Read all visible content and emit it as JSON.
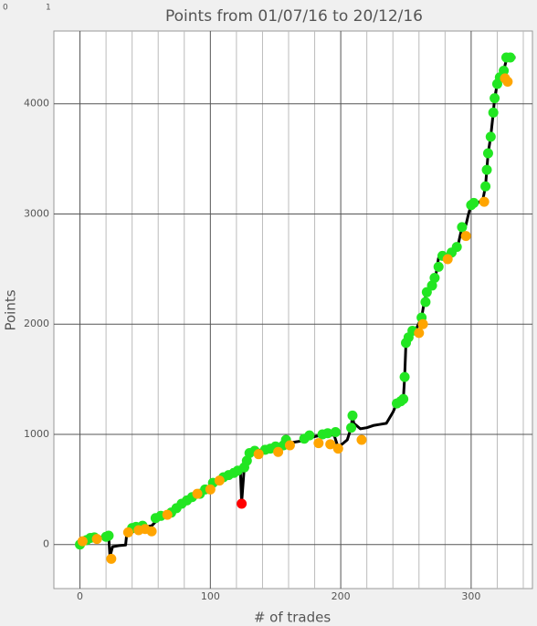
{
  "chart_data": {
    "type": "line",
    "title": "Points from 01/07/16 to 20/12/16",
    "corner_labels": [
      "0",
      "1"
    ],
    "x_label": "# of trades",
    "y_label": "Points",
    "xlim": [
      -20,
      347
    ],
    "ylim": [
      -400,
      4660
    ],
    "xticks": [
      0,
      100,
      200,
      300
    ],
    "xminorticks": [
      20,
      40,
      60,
      80,
      120,
      140,
      160,
      180,
      220,
      240,
      260,
      280,
      320,
      340
    ],
    "yticks": [
      0,
      1000,
      2000,
      3000,
      4000
    ],
    "grid": true,
    "series": [
      {
        "kind": "line",
        "color": "#000000",
        "x": [
          0,
          5,
          10,
          15,
          20,
          22,
          23,
          25,
          30,
          35,
          36,
          40,
          45,
          50,
          55,
          60,
          65,
          70,
          75,
          80,
          85,
          90,
          95,
          100,
          105,
          110,
          115,
          120,
          123,
          124,
          126,
          128,
          130,
          135,
          140,
          145,
          150,
          155,
          160,
          165,
          170,
          175,
          180,
          185,
          190,
          195,
          198,
          200,
          205,
          208,
          209,
          210,
          212,
          215,
          220,
          225,
          230,
          235,
          240,
          243,
          246,
          248,
          249,
          250,
          252,
          255,
          258,
          262,
          264,
          266,
          270,
          273,
          275,
          280,
          285,
          290,
          293,
          296,
          298,
          300,
          305,
          309,
          311,
          312,
          313,
          315,
          317,
          318,
          320,
          322,
          325,
          327,
          330,
          334
        ],
        "values": [
          0,
          40,
          60,
          65,
          70,
          80,
          -110,
          -20,
          -10,
          -5,
          110,
          110,
          150,
          160,
          170,
          230,
          260,
          290,
          330,
          380,
          420,
          460,
          500,
          540,
          580,
          620,
          640,
          660,
          680,
          380,
          700,
          760,
          830,
          850,
          860,
          870,
          890,
          900,
          920,
          930,
          940,
          960,
          980,
          990,
          1000,
          990,
          880,
          900,
          950,
          1060,
          1170,
          1100,
          1080,
          1050,
          1060,
          1080,
          1090,
          1100,
          1200,
          1280,
          1300,
          1320,
          1520,
          1830,
          1880,
          1930,
          1960,
          2060,
          2200,
          2290,
          2350,
          2450,
          2600,
          2620,
          2660,
          2720,
          2880,
          2900,
          3000,
          3080,
          3100,
          3130,
          3250,
          3400,
          3550,
          3700,
          3920,
          4050,
          4180,
          4240,
          4300,
          4400,
          4420,
          4420
        ]
      },
      {
        "kind": "markers",
        "color": "#22e622",
        "x": [
          0,
          5,
          8,
          11,
          20,
          22,
          40,
          43,
          48,
          58,
          62,
          70,
          74,
          78,
          82,
          86,
          92,
          96,
          102,
          110,
          114,
          118,
          121,
          126,
          128,
          130,
          134,
          142,
          146,
          150,
          156,
          158,
          172,
          176,
          186,
          190,
          196,
          208,
          209,
          243,
          246,
          248,
          249,
          250,
          252,
          255,
          262,
          265,
          266,
          270,
          272,
          275,
          278,
          285,
          289,
          293,
          300,
          302,
          311,
          312,
          313,
          315,
          317,
          318,
          320,
          322,
          325,
          327,
          330
        ],
        "values": [
          0,
          40,
          60,
          65,
          70,
          80,
          150,
          160,
          170,
          240,
          260,
          290,
          330,
          370,
          400,
          430,
          460,
          500,
          560,
          610,
          630,
          650,
          670,
          700,
          760,
          830,
          850,
          860,
          870,
          890,
          900,
          950,
          960,
          990,
          1000,
          1010,
          1020,
          1060,
          1170,
          1280,
          1300,
          1320,
          1520,
          1830,
          1880,
          1940,
          2060,
          2200,
          2290,
          2350,
          2420,
          2520,
          2620,
          2650,
          2700,
          2880,
          3080,
          3100,
          3250,
          3400,
          3550,
          3700,
          3920,
          4050,
          4180,
          4240,
          4300,
          4420,
          4420
        ]
      },
      {
        "kind": "markers",
        "color": "#ffa500",
        "x": [
          2,
          13,
          24,
          37,
          45,
          50,
          55,
          67,
          90,
          100,
          107,
          137,
          152,
          161,
          183,
          192,
          198,
          216,
          260,
          263,
          282,
          296,
          310,
          326,
          328
        ],
        "values": [
          30,
          50,
          -130,
          110,
          130,
          140,
          120,
          270,
          460,
          500,
          580,
          820,
          840,
          900,
          920,
          910,
          870,
          950,
          1920,
          2000,
          2590,
          2800,
          3110,
          4230,
          4200
        ]
      },
      {
        "kind": "markers",
        "color": "#ff0000",
        "x": [
          124
        ],
        "values": [
          370
        ]
      }
    ]
  }
}
